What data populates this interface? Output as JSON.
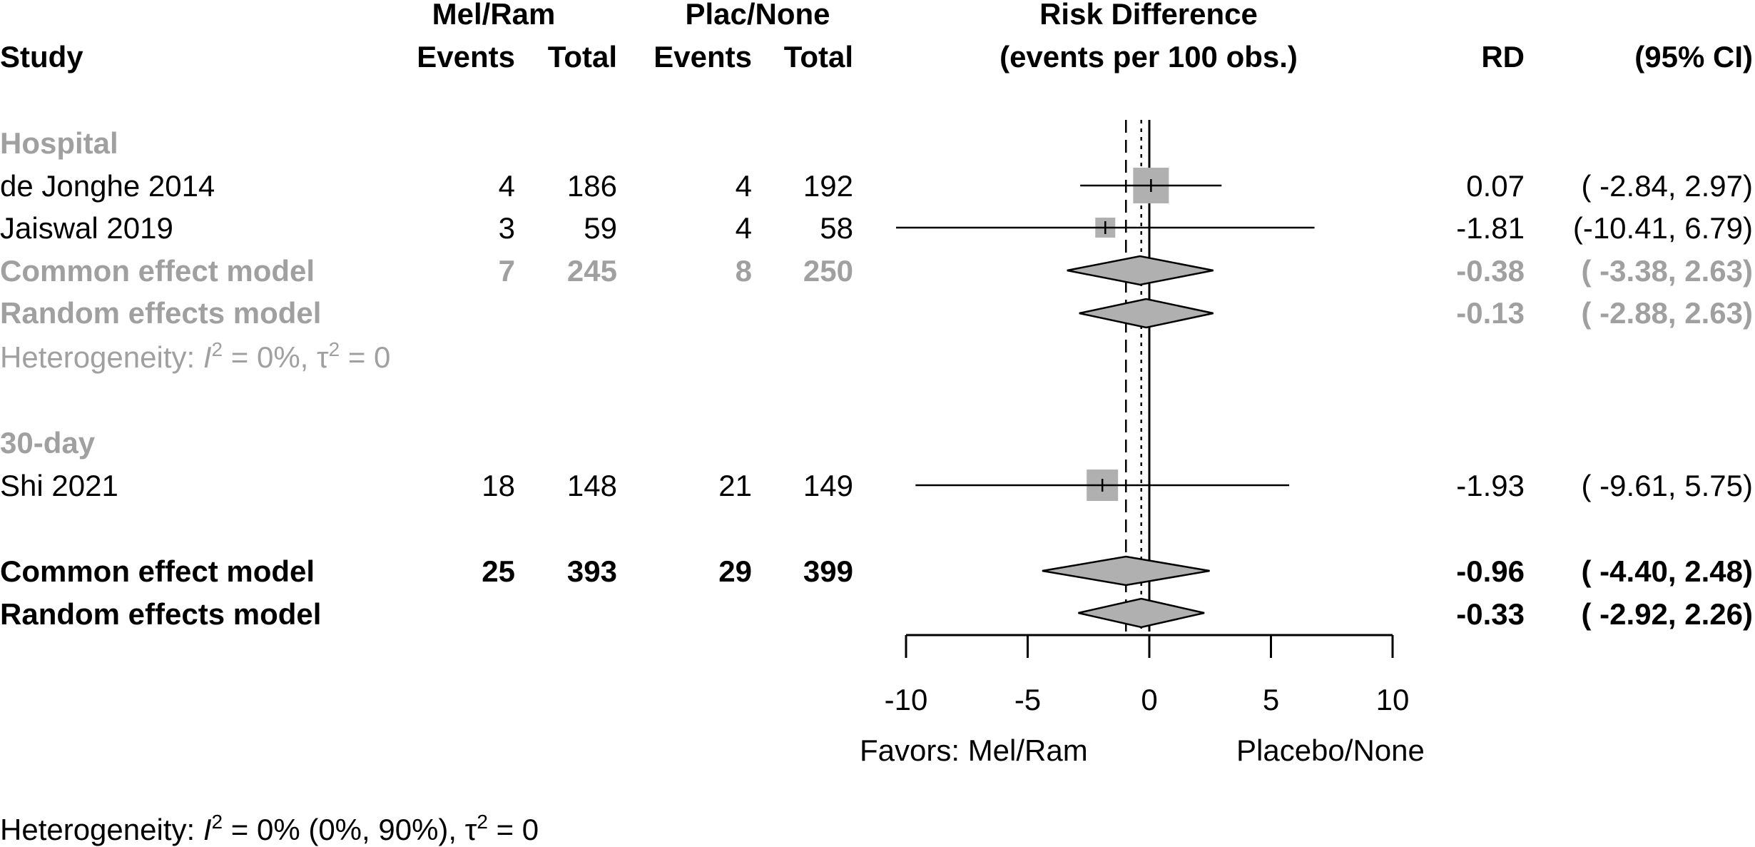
{
  "headers": {
    "study": "Study",
    "group1": "Mel/Ram",
    "group2": "Plac/None",
    "events": "Events",
    "total": "Total",
    "plot_title_1": "Risk Difference",
    "plot_title_2": "(events per 100 obs.)",
    "rd": "RD",
    "ci": "(95% CI)"
  },
  "subgroups": [
    {
      "label": "Hospital",
      "studies": [
        {
          "name": "de Jonghe 2014",
          "e1": "4",
          "t1": "186",
          "e2": "4",
          "t2": "192",
          "rd_text": "0.07",
          "ci_text": "( -2.84, 2.97)"
        },
        {
          "name": "Jaiswal 2019",
          "e1": "3",
          "t1": "59",
          "e2": "4",
          "t2": "58",
          "rd_text": "-1.81",
          "ci_text": "(-10.41, 6.79)"
        }
      ],
      "common": {
        "label": "Common effect model",
        "e1": "7",
        "t1": "245",
        "e2": "8",
        "t2": "250",
        "rd_text": "-0.38",
        "ci_text": "( -3.38, 2.63)"
      },
      "random": {
        "label": "Random effects model",
        "rd_text": "-0.13",
        "ci_text": "( -2.88, 2.63)"
      },
      "heterogeneity": {
        "prefix": "Heterogeneity: ",
        "i": "I",
        "exp": "2",
        "mid": " = 0%, ",
        "tau": "τ",
        "exp2": "2",
        "end": " = 0"
      }
    },
    {
      "label": "30-day",
      "studies": [
        {
          "name": "Shi 2021",
          "e1": "18",
          "t1": "148",
          "e2": "21",
          "t2": "149",
          "rd_text": "-1.93",
          "ci_text": "( -9.61, 5.75)"
        }
      ]
    }
  ],
  "overall": {
    "common": {
      "label": "Common effect model",
      "e1": "25",
      "t1": "393",
      "e2": "29",
      "t2": "399",
      "rd_text": "-0.96",
      "ci_text": "( -4.40, 2.48)"
    },
    "random": {
      "label": "Random effects model",
      "rd_text": "-0.33",
      "ci_text": "( -2.92, 2.26)"
    },
    "heterogeneity": {
      "prefix": "Heterogeneity: ",
      "i": "I",
      "exp": "2",
      "mid": " = 0% (0%, 90%), ",
      "tau": "τ",
      "exp2": "2",
      "end": " = 0"
    }
  },
  "axis": {
    "favors_left": "Favors: Mel/Ram",
    "favors_right": "Placebo/None"
  },
  "colors": {
    "subgroup": "#a0a0a0",
    "box": "#b0b0b0",
    "diamond": "#b0b0b0",
    "overall": "#000000"
  },
  "chart_data": {
    "type": "forest",
    "xlim": [
      -10,
      10
    ],
    "ticks": [
      -10,
      -5,
      0,
      5,
      10
    ],
    "null_line": 0,
    "common_line": -0.96,
    "random_line": -0.33,
    "studies": [
      {
        "name": "de Jonghe 2014",
        "rd": 0.07,
        "lower": -2.84,
        "upper": 2.97,
        "weight": "large"
      },
      {
        "name": "Jaiswal 2019",
        "rd": -1.81,
        "lower": -10.41,
        "upper": 6.79,
        "weight": "small"
      },
      {
        "name": "Shi 2021",
        "rd": -1.93,
        "lower": -9.61,
        "upper": 5.75,
        "weight": "medium"
      }
    ],
    "summaries": [
      {
        "name": "Hospital common",
        "rd": -0.38,
        "lower": -3.38,
        "upper": 2.63,
        "style": "subgroup"
      },
      {
        "name": "Hospital random",
        "rd": -0.13,
        "lower": -2.88,
        "upper": 2.63,
        "style": "subgroup"
      },
      {
        "name": "Overall common",
        "rd": -0.96,
        "lower": -4.4,
        "upper": 2.48,
        "style": "overall"
      },
      {
        "name": "Overall random",
        "rd": -0.33,
        "lower": -2.92,
        "upper": 2.26,
        "style": "overall"
      }
    ]
  }
}
